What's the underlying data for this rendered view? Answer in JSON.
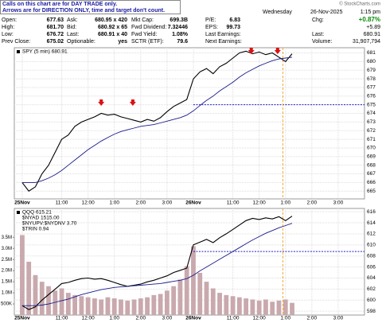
{
  "header": {
    "notes": [
      "Calls on this chart are for DAY TRADE only.",
      "Arrows are for DIRECTION ONLY, time and target don't count."
    ],
    "copyright": "© StockCharts.com",
    "quote": [
      [
        [
          "Open:",
          "677.63"
        ],
        [
          "Ask:",
          "680.95 x 420"
        ],
        [
          "Mkt Cap:",
          "699.3B"
        ],
        [
          "P/E:",
          "6.83"
        ]
      ],
      [
        [
          "High:",
          "681.70"
        ],
        [
          "Bid:",
          "680.92 x 65"
        ],
        [
          "Fwd Dividend:",
          "7.32446"
        ],
        [
          "EPS:",
          "99.73"
        ]
      ],
      [
        [
          "Low:",
          "676.72"
        ],
        [
          "Last:",
          "680.91 x 40"
        ],
        [
          "Fwd Yield:",
          "1.08%"
        ],
        [
          "Last Earnings:"
        ]
      ],
      [
        [
          "Prev Close:",
          "675.02"
        ],
        [
          "Optionable:",
          "yes"
        ],
        [
          "SCTR (ETF):",
          "79.6"
        ],
        [
          "Next Earnings:"
        ]
      ]
    ],
    "day": "Wednesday",
    "date": "26-Nov-2025",
    "time": "1:15 pm",
    "chg_label": "Chg:",
    "chg_pct": "+0.87%",
    "chg": "+5.89",
    "last_label": "Last:",
    "last": "680.91",
    "volume_label": "Volume:",
    "volume": "31,907,794"
  },
  "chart_data": [
    {
      "type": "line",
      "legend": [
        "SPY (5 min) 680.91"
      ],
      "x": [
        0,
        0.25,
        0.5,
        0.75,
        1,
        1.25,
        1.5,
        1.75,
        2,
        2.25,
        2.5,
        2.75,
        3,
        3.25,
        3.5,
        3.75,
        4,
        4.25,
        4.5,
        4.75,
        5,
        5.25,
        5.5,
        5.75,
        6,
        6.25,
        6.5,
        6.75,
        7,
        7.25,
        7.5,
        7.75,
        8,
        8.25,
        8.5,
        8.75,
        9,
        9.25,
        9.5,
        9.75,
        10,
        10.25
      ],
      "series": [
        {
          "color": "#000000",
          "values": [
            666,
            665,
            665.5,
            667,
            668,
            669.5,
            671,
            671.5,
            672.5,
            673,
            673.3,
            673.6,
            674,
            673.8,
            673.9,
            673.6,
            673.4,
            673.2,
            673,
            673.3,
            673.1,
            673.5,
            674.2,
            674.8,
            675.2,
            675.6,
            678,
            678.8,
            679.2,
            678.6,
            679.4,
            679.8,
            680.4,
            681,
            681.2,
            680.9,
            681.1,
            680.8,
            681,
            680.5,
            680,
            680.9
          ]
        },
        {
          "color": "#1a1a8c",
          "values": [
            666,
            666,
            666,
            666.2,
            666.5,
            666.9,
            667.4,
            668,
            668.6,
            669.2,
            669.8,
            670.3,
            670.8,
            671.2,
            671.6,
            671.9,
            672.1,
            672.3,
            672.5,
            672.6,
            672.7,
            672.9,
            673.1,
            673.3,
            673.5,
            673.8,
            674.3,
            674.9,
            675.5,
            676,
            676.6,
            677.1,
            677.6,
            678.2,
            678.7,
            679.1,
            679.5,
            679.8,
            680.1,
            680.3,
            680.4,
            680.5
          ]
        }
      ],
      "level": 675,
      "level_color": "#2222cc",
      "marker_x": 9.9,
      "marker_color": "#f0b030",
      "arrows_x": [
        3,
        4.2,
        8.7,
        9.7
      ],
      "arrow_color": "#dd1111",
      "xlim": [
        -0.3,
        13
      ],
      "xticks": [
        {
          "value": 0,
          "label": "25Nov"
        },
        {
          "value": 1.5,
          "label": "11:00"
        },
        {
          "value": 2.5,
          "label": "12:00"
        },
        {
          "value": 3.5,
          "label": "1:00"
        },
        {
          "value": 4.5,
          "label": "2:00"
        },
        {
          "value": 5.5,
          "label": "3:00"
        },
        {
          "value": 6.5,
          "label": "26Nov"
        },
        {
          "value": 8,
          "label": "11:00"
        },
        {
          "value": 9,
          "label": "12:00"
        },
        {
          "value": 10,
          "label": "1:00"
        },
        {
          "value": 11,
          "label": "2:00"
        },
        {
          "value": 12,
          "label": "3:00"
        }
      ],
      "ylim": [
        664.1,
        681.6
      ],
      "yticks": [
        665,
        666,
        667,
        668,
        669,
        670,
        671,
        672,
        673,
        674,
        675,
        676,
        677,
        678,
        679,
        680,
        681
      ],
      "grid": true
    },
    {
      "type": "line",
      "legend": [
        "QQQ 615.21",
        "$NYAD 1515.00",
        "$NYUPV:$NYDNV 3.70",
        "$TRIN 0.94"
      ],
      "x": [
        0,
        0.25,
        0.5,
        0.75,
        1,
        1.25,
        1.5,
        1.75,
        2,
        2.25,
        2.5,
        2.75,
        3,
        3.25,
        3.5,
        3.75,
        4,
        4.25,
        4.5,
        4.75,
        5,
        5.25,
        5.5,
        5.75,
        6,
        6.25,
        6.5,
        6.75,
        7,
        7.25,
        7.5,
        7.75,
        8,
        8.25,
        8.5,
        8.75,
        9,
        9.25,
        9.5,
        9.75,
        10,
        10.25
      ],
      "series": [
        {
          "color": "#000000",
          "values": [
            599,
            598.3,
            598.8,
            600,
            601,
            602,
            603,
            603.2,
            603.6,
            603.9,
            604,
            603.8,
            603.9,
            603.6,
            603.2,
            602.8,
            602.5,
            602.7,
            602.9,
            603.3,
            603.6,
            604,
            604.4,
            605,
            605.4,
            605.8,
            610,
            610.5,
            611,
            610.4,
            611.3,
            612,
            612.8,
            613.6,
            614.4,
            614.8,
            614.6,
            614.9,
            614.7,
            615.1,
            614.4,
            615.2
          ]
        },
        {
          "color": "#1a1a8c",
          "values": [
            599,
            599,
            599,
            599.1,
            599.3,
            599.6,
            599.9,
            600.2,
            600.6,
            601,
            601.3,
            601.6,
            601.9,
            602.1,
            602.3,
            602.4,
            602.5,
            602.6,
            602.7,
            602.8,
            602.9,
            603,
            603.2,
            603.4,
            603.6,
            603.9,
            604.5,
            605.3,
            606,
            606.7,
            607.4,
            608.1,
            608.8,
            609.5,
            610.2,
            610.9,
            611.5,
            612.1,
            612.6,
            613.1,
            613.5,
            613.9
          ]
        },
        {
          "type": "bar",
          "axis": "y2",
          "color": "#c9a9ad",
          "values": [
            3600000,
            2400000,
            1800000,
            1500000,
            1300000,
            1100000,
            1200000,
            1000000,
            900000,
            850000,
            800000,
            750000,
            700000,
            800000,
            750000,
            700000,
            650000,
            700000,
            750000,
            800000,
            900000,
            950000,
            1100000,
            1300000,
            1600000,
            2200000,
            3100000,
            1900000,
            1500000,
            1200000,
            1000000,
            900000,
            850000,
            800000,
            750000,
            700000,
            650000,
            700000,
            600000,
            650000,
            700000,
            550000
          ]
        }
      ],
      "level": 608.8,
      "level_color": "#2222cc",
      "marker_x": 9.9,
      "marker_color": "#f0b030",
      "xlim": [
        -0.3,
        13
      ],
      "xticks": [
        {
          "value": 0,
          "label": "25Nov"
        },
        {
          "value": 1.5,
          "label": "11:00"
        },
        {
          "value": 2.5,
          "label": "12:00"
        },
        {
          "value": 3.5,
          "label": "1:00"
        },
        {
          "value": 4.5,
          "label": "2:00"
        },
        {
          "value": 5.5,
          "label": "3:00"
        },
        {
          "value": 6.5,
          "label": "26Nov"
        },
        {
          "value": 8,
          "label": "11:00"
        },
        {
          "value": 9,
          "label": "12:00"
        },
        {
          "value": 10,
          "label": "1:00"
        },
        {
          "value": 11,
          "label": "2:00"
        },
        {
          "value": 12,
          "label": "3:00"
        }
      ],
      "ylim": [
        597.3,
        616.6
      ],
      "yticks": [
        598,
        600,
        602,
        604,
        606,
        608,
        610,
        612,
        614,
        616
      ],
      "y2lim": [
        0,
        4800000
      ],
      "y2ticks": [
        {
          "value": 500000,
          "label": "500K"
        },
        {
          "value": 1000000,
          "label": "1.0M"
        },
        {
          "value": 1500000,
          "label": "1.5M"
        },
        {
          "value": 2000000,
          "label": "2.0M"
        },
        {
          "value": 2500000,
          "label": "2.5M"
        },
        {
          "value": 3000000,
          "label": "3.0M"
        },
        {
          "value": 3500000,
          "label": "3.5M"
        }
      ],
      "grid": true
    }
  ]
}
